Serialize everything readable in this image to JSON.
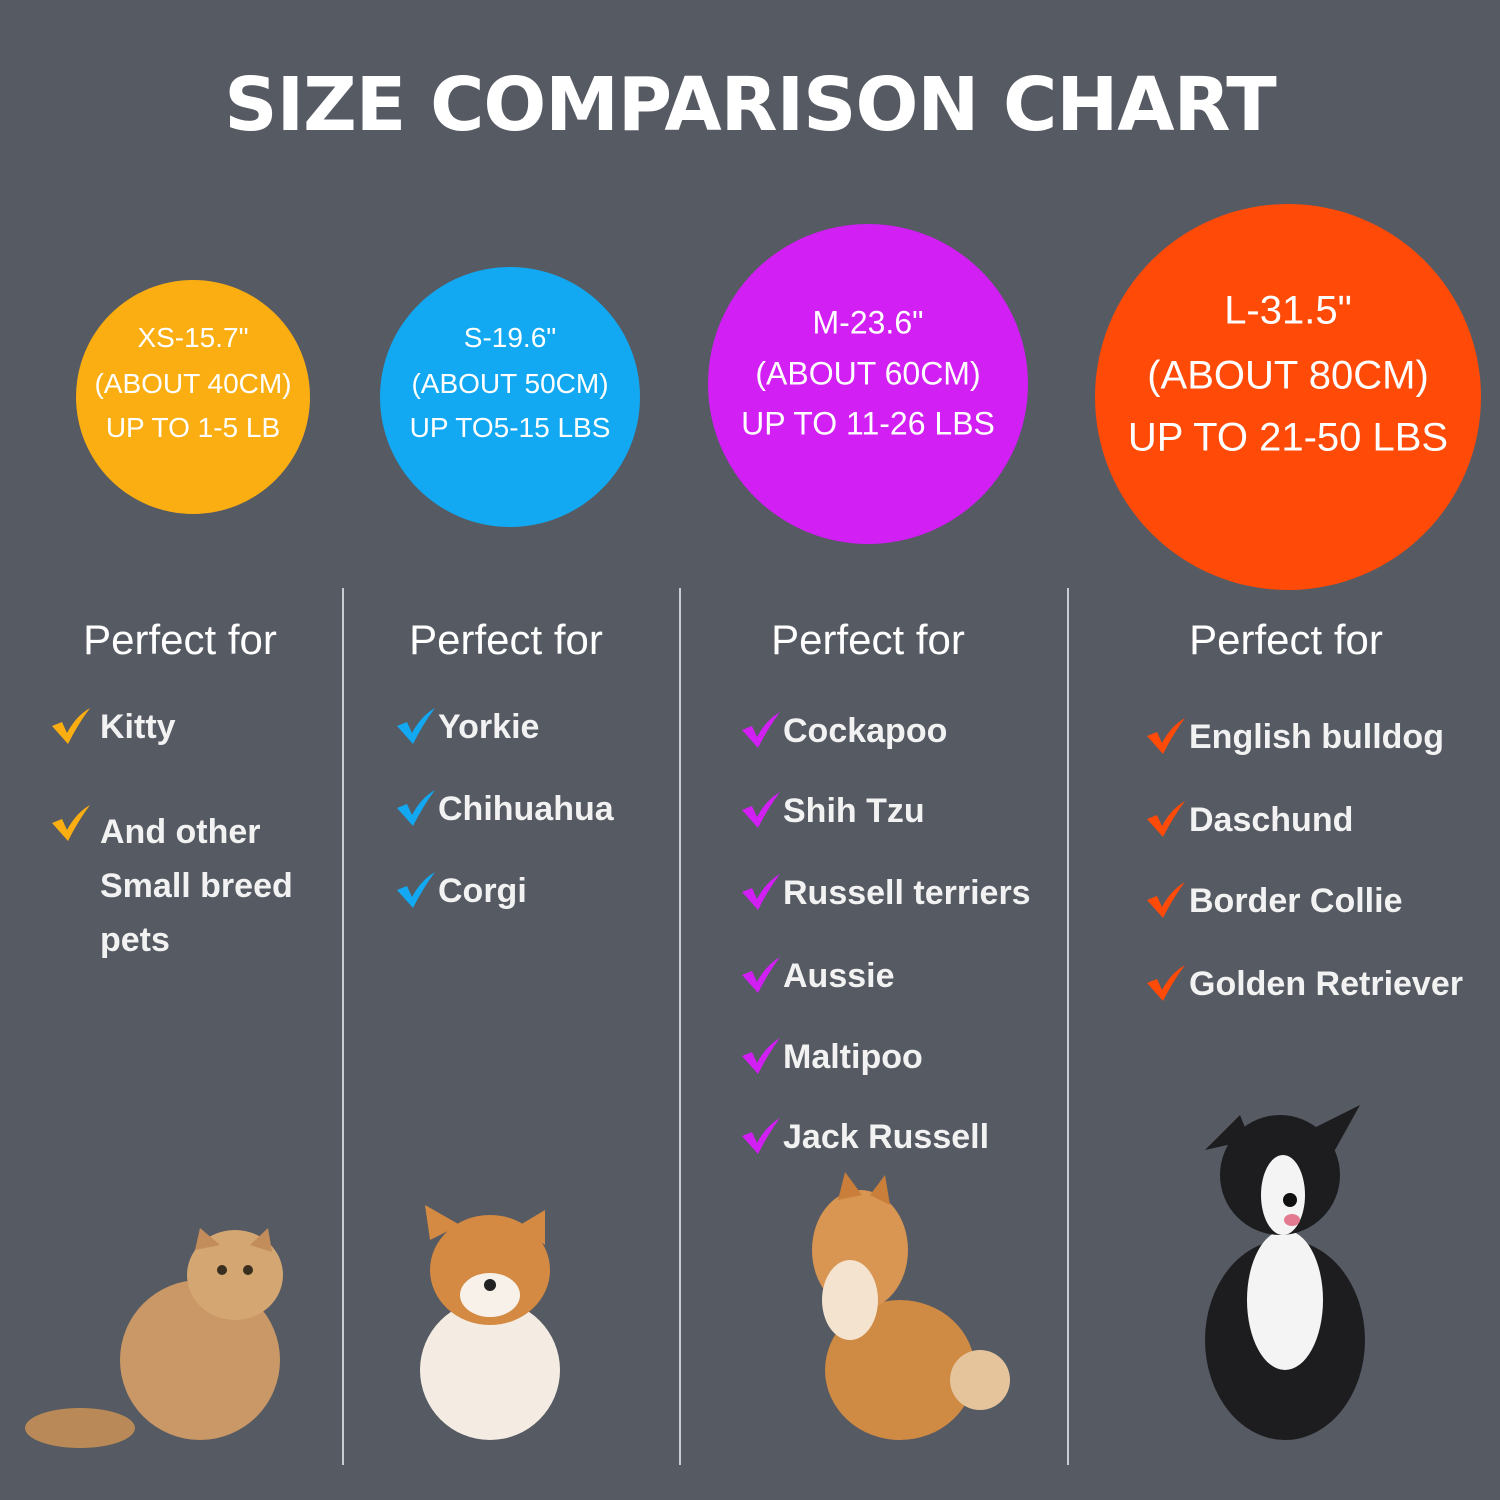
{
  "header": {
    "title": "SIZE COMPARISON CHART"
  },
  "columns": [
    {
      "color": "#fbae12",
      "circle_lines": [
        "XS-15.7\"",
        "(ABOUT 40CM)",
        "UP TO 1-5 LB"
      ],
      "heading": "Perfect for",
      "items": [
        "Kitty",
        "And other Small breed pets"
      ]
    },
    {
      "color": "#12a9f2",
      "circle_lines": [
        "S-19.6\"",
        "(ABOUT 50CM)",
        "UP TO5-15 LBS"
      ],
      "heading": "Perfect for",
      "items": [
        "Yorkie",
        "Chihuahua",
        "Corgi"
      ]
    },
    {
      "color": "#d11ff4",
      "circle_lines": [
        "M-23.6\"",
        "(ABOUT 60CM)",
        "UP TO 11-26 LBS"
      ],
      "heading": "Perfect for",
      "items": [
        "Cockapoo",
        "Shih Tzu",
        "Russell terriers",
        "Aussie",
        "Maltipoo",
        "Jack Russell"
      ]
    },
    {
      "color": "#ff4a08",
      "circle_lines": [
        "L-31.5\"",
        "(ABOUT 80CM)",
        "UP TO 21-50 LBS"
      ],
      "heading": "Perfect for",
      "items": [
        "English bulldog",
        "Daschund",
        "Border Collie",
        "Golden Retriever"
      ]
    }
  ]
}
